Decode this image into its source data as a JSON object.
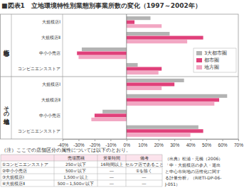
{
  "chart_data": {
    "type": "bar",
    "title": "■図表1　立地環境特性別業態別事業所数の変化（1997～2002年）",
    "orientation": "horizontal",
    "grid": false,
    "legend": "right",
    "categories": [
      "大規模店Ⅰ",
      "大規模店Ⅱ",
      "中小小売店",
      "コンビニエンスストア",
      "大規模店Ⅰ",
      "大規模店Ⅱ",
      "中小小売店",
      "コンビニエンスストア"
    ],
    "category_groups": [
      {
        "label": "中心市街地",
        "size": 4
      },
      {
        "label": "その他地域",
        "size": 4
      }
    ],
    "series": [
      {
        "name": "3大都市圏",
        "color": "#b3b3b3",
        "values": [
          15,
          27,
          -28,
          7,
          36,
          63,
          -15,
          45
        ]
      },
      {
        "name": "都市圏",
        "color": "#e0407a",
        "values": [
          5,
          48,
          -31,
          22,
          30,
          58,
          -20,
          48
        ]
      },
      {
        "name": "地方圏",
        "color": "#f2a7c3",
        "values": [
          22,
          38,
          -30,
          20,
          22,
          55,
          -22,
          40
        ]
      }
    ],
    "xlim": [
      -40,
      70
    ],
    "xticks": [
      {
        "value": -40,
        "label": "-40%"
      },
      {
        "value": -30,
        "label": "-30%"
      },
      {
        "value": -20,
        "label": "-20%"
      },
      {
        "value": -10,
        "label": "-10%"
      },
      {
        "value": 0,
        "label": "0%"
      },
      {
        "value": 10,
        "label": "10%"
      },
      {
        "value": 20,
        "label": "20%"
      },
      {
        "value": 30,
        "label": "30%"
      },
      {
        "value": 40,
        "label": "40%"
      },
      {
        "value": 50,
        "label": "50%"
      },
      {
        "value": 60,
        "label": "60%"
      },
      {
        "value": 70,
        "label": "70%"
      }
    ]
  },
  "note": {
    "caption": "（注）ここでの店舗区分の属性については以下のとおり。",
    "header": [
      "売場面積",
      "営業時間",
      "備考"
    ],
    "rows": [
      [
        "①コンビニエンスストア",
        "250㎡以下",
        "16時間以上",
        "セルフ店であること"
      ],
      [
        "②中小小売店",
        "500㎡以下",
        "―",
        "①を除く"
      ],
      [
        "③大規模店Ⅰ",
        "1,500㎡以上",
        "―",
        "―"
      ],
      [
        "④大規模店Ⅱ",
        "500～1,500㎡以下",
        "―",
        "―"
      ]
    ]
  },
  "source": [
    "（出典）松浦・元橋（2006）",
    "「中・大規模店の参入・退出",
    "と中心市街地の活性化に関す",
    "る計量分析」（RIETI-DP-06-",
    "J-051）"
  ]
}
